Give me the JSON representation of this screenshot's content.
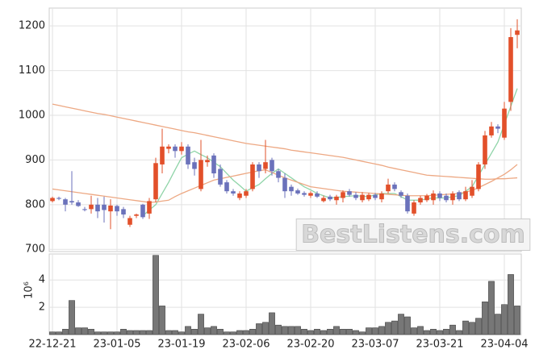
{
  "chart_data": {
    "type": "candlestick",
    "categories": [
      "22-12-21",
      null,
      null,
      null,
      null,
      null,
      null,
      null,
      null,
      null,
      "23-01-05",
      null,
      null,
      null,
      null,
      null,
      null,
      null,
      null,
      null,
      "23-01-19",
      null,
      null,
      null,
      null,
      null,
      null,
      null,
      null,
      null,
      "23-02-06",
      null,
      null,
      null,
      null,
      null,
      null,
      null,
      null,
      null,
      "23-02-20",
      null,
      null,
      null,
      null,
      null,
      null,
      null,
      null,
      null,
      "23-03-07",
      null,
      null,
      null,
      null,
      null,
      null,
      null,
      null,
      null,
      "23-03-21",
      null,
      null,
      null,
      null,
      null,
      null,
      null,
      null,
      null,
      "23-04-04",
      null,
      null
    ],
    "open": [
      808,
      815,
      812,
      808,
      805,
      790,
      790,
      800,
      800,
      785,
      797,
      790,
      755,
      775,
      800,
      780,
      812,
      890,
      925,
      930,
      920,
      930,
      895,
      835,
      895,
      910,
      880,
      850,
      830,
      815,
      820,
      835,
      890,
      880,
      900,
      875,
      860,
      840,
      832,
      826,
      820,
      825,
      808,
      818,
      810,
      815,
      830,
      822,
      810,
      812,
      822,
      812,
      830,
      845,
      828,
      820,
      780,
      805,
      810,
      810,
      825,
      820,
      810,
      828,
      812,
      820,
      835,
      890,
      955,
      975,
      950,
      1030,
      1180
    ],
    "high": [
      818,
      818,
      815,
      875,
      810,
      795,
      820,
      815,
      818,
      812,
      800,
      795,
      775,
      780,
      802,
      815,
      905,
      970,
      935,
      935,
      940,
      935,
      905,
      945,
      910,
      915,
      890,
      855,
      835,
      830,
      835,
      895,
      895,
      945,
      905,
      880,
      870,
      845,
      836,
      830,
      830,
      830,
      820,
      822,
      822,
      832,
      835,
      828,
      828,
      826,
      826,
      830,
      858,
      850,
      832,
      825,
      810,
      820,
      824,
      832,
      830,
      825,
      830,
      832,
      840,
      855,
      895,
      965,
      985,
      980,
      1030,
      1195,
      1215
    ],
    "low": [
      805,
      810,
      785,
      800,
      795,
      785,
      780,
      770,
      760,
      745,
      775,
      770,
      750,
      770,
      768,
      768,
      805,
      870,
      915,
      905,
      912,
      880,
      865,
      830,
      885,
      860,
      840,
      825,
      820,
      810,
      815,
      830,
      860,
      870,
      865,
      850,
      815,
      820,
      822,
      818,
      815,
      815,
      805,
      808,
      800,
      805,
      818,
      810,
      805,
      808,
      810,
      805,
      825,
      830,
      815,
      780,
      775,
      800,
      806,
      800,
      808,
      805,
      800,
      808,
      808,
      815,
      830,
      880,
      950,
      960,
      945,
      1010,
      1150
    ],
    "close": [
      815,
      813,
      800,
      805,
      797,
      788,
      800,
      785,
      788,
      798,
      785,
      778,
      770,
      778,
      772,
      808,
      893,
      930,
      930,
      920,
      930,
      890,
      880,
      900,
      900,
      870,
      845,
      830,
      825,
      825,
      830,
      890,
      875,
      895,
      875,
      860,
      830,
      830,
      825,
      822,
      826,
      818,
      815,
      812,
      818,
      828,
      822,
      815,
      822,
      822,
      815,
      825,
      845,
      835,
      820,
      785,
      805,
      815,
      820,
      825,
      815,
      810,
      825,
      812,
      830,
      840,
      890,
      955,
      975,
      970,
      1015,
      1175,
      1190
    ],
    "up_color": "#e2502a",
    "down_color": "#6b72bb",
    "ma_series": [
      {
        "color": "#8fd4a8",
        "values": [
          null,
          null,
          null,
          null,
          null,
          null,
          null,
          null,
          null,
          null,
          null,
          null,
          null,
          null,
          775,
          788,
          800,
          825,
          850,
          878,
          905,
          913,
          920,
          912,
          905,
          895,
          885,
          870,
          855,
          843,
          830,
          838,
          845,
          858,
          870,
          880,
          870,
          860,
          850,
          840,
          833,
          825,
          820,
          815,
          816,
          818,
          819,
          820,
          819,
          818,
          822,
          825,
          825,
          825,
          818,
          810,
          810,
          810,
          813,
          815,
          815,
          815,
          818,
          820,
          830,
          840,
          865,
          890,
          915,
          940,
          980,
          1020,
          1060
        ]
      },
      {
        "color": "#eda883",
        "values": [
          835,
          833,
          831,
          829,
          827,
          825,
          823,
          821,
          819,
          817,
          815,
          813,
          811,
          809,
          807,
          805,
          806,
          808,
          810,
          818,
          825,
          831,
          837,
          843,
          849,
          855,
          858,
          861,
          864,
          867,
          870,
          873,
          876,
          878,
          872,
          866,
          860,
          855,
          850,
          845,
          840,
          838,
          836,
          834,
          832,
          830,
          829,
          828,
          827,
          826,
          825,
          824,
          823,
          822,
          821,
          820,
          820,
          820,
          820,
          821,
          822,
          823,
          824,
          825,
          828,
          832,
          838,
          845,
          852,
          860,
          868,
          878,
          890
        ]
      },
      {
        "color": "#eda883",
        "values": [
          1025,
          1022,
          1019,
          1016,
          1013,
          1010,
          1007,
          1004,
          1002,
          999,
          996,
          993,
          990,
          987,
          984,
          981,
          978,
          975,
          972,
          969,
          966,
          963,
          961,
          958,
          955,
          952,
          949,
          946,
          943,
          940,
          937,
          935,
          933,
          931,
          929,
          927,
          925,
          922,
          920,
          918,
          916,
          914,
          912,
          910,
          908,
          906,
          903,
          900,
          897,
          894,
          891,
          888,
          884,
          881,
          878,
          875,
          872,
          869,
          866,
          865,
          864,
          863,
          862,
          861,
          860,
          859,
          858,
          857,
          857,
          858,
          858,
          859,
          860
        ]
      }
    ],
    "ylim": [
      695,
      1240
    ],
    "yticks": [
      700,
      800,
      900,
      1000,
      1100,
      1200
    ],
    "volume": [
      0.2,
      0.2,
      0.4,
      2.5,
      0.5,
      0.5,
      0.4,
      0.2,
      0.2,
      0.2,
      0.2,
      0.4,
      0.3,
      0.3,
      0.3,
      0.3,
      5.8,
      2.1,
      0.3,
      0.3,
      0.2,
      0.6,
      0.4,
      1.5,
      0.5,
      0.6,
      0.4,
      0.2,
      0.2,
      0.3,
      0.3,
      0.4,
      0.8,
      0.9,
      1.6,
      0.7,
      0.6,
      0.6,
      0.6,
      0.4,
      0.3,
      0.4,
      0.3,
      0.4,
      0.6,
      0.4,
      0.4,
      0.3,
      0.2,
      0.5,
      0.5,
      0.6,
      0.9,
      1.0,
      1.5,
      1.3,
      0.5,
      0.6,
      0.3,
      0.4,
      0.3,
      0.4,
      0.7,
      0.3,
      1.0,
      0.9,
      1.2,
      2.4,
      3.9,
      1.5,
      2.2,
      4.4,
      2.1
    ],
    "volume_color": "#777777",
    "volume_ylim": [
      0,
      5.9
    ],
    "volume_yticks": [
      2,
      4
    ],
    "volume_label": "10⁶",
    "watermark": "BestListens.com",
    "grid": true
  }
}
